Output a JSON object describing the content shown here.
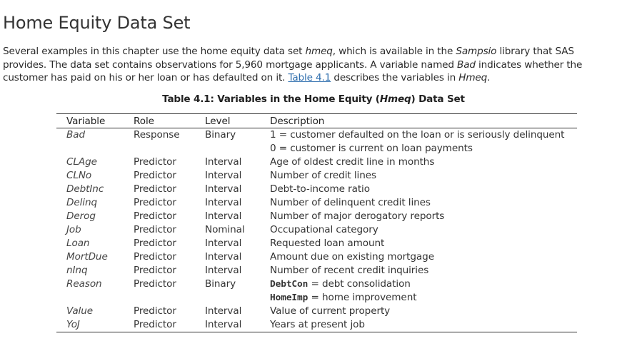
{
  "title": "Home Equity Data Set",
  "paragraph": {
    "t1": "Several examples in this chapter use the home equity data set ",
    "hmeq1": "hmeq",
    "t2": ", which is available in the ",
    "sampsio": "Sampsio",
    "t3": " library that SAS provides. The data set contains observations for 5,960 mortgage applicants. A variable named ",
    "bad": "Bad",
    "t4": " indicates whether the customer has paid on his or her loan or has defaulted on it. ",
    "link": "Table 4.1",
    "t5": " describes the variables in ",
    "hmeq2": "Hmeq",
    "t6": "."
  },
  "caption": {
    "prefix": "Table 4.1: Variables in the Home Equity (",
    "italic": "Hmeq",
    "suffix": ") Data Set"
  },
  "table": {
    "headers": [
      "Variable",
      "Role",
      "Level",
      "Description"
    ],
    "rows": [
      {
        "variable": "Bad",
        "role": "Response",
        "level": "Binary",
        "description": "1 = customer defaulted on the loan or is seriously delinquent"
      },
      {
        "variable": "",
        "role": "",
        "level": "",
        "description": "0 = customer is current on loan payments"
      },
      {
        "variable": "CLAge",
        "role": "Predictor",
        "level": "Interval",
        "description": "Age of oldest credit line in months"
      },
      {
        "variable": "CLNo",
        "role": "Predictor",
        "level": "Interval",
        "description": "Number of credit lines"
      },
      {
        "variable": "DebtInc",
        "role": "Predictor",
        "level": "Interval",
        "description": "Debt-to-income ratio"
      },
      {
        "variable": "Delinq",
        "role": "Predictor",
        "level": "Interval",
        "description": "Number of delinquent credit lines"
      },
      {
        "variable": "Derog",
        "role": "Predictor",
        "level": "Interval",
        "description": "Number of major derogatory reports"
      },
      {
        "variable": "Job",
        "role": "Predictor",
        "level": "Nominal",
        "description": "Occupational category"
      },
      {
        "variable": "Loan",
        "role": "Predictor",
        "level": "Interval",
        "description": "Requested loan amount"
      },
      {
        "variable": "MortDue",
        "role": "Predictor",
        "level": "Interval",
        "description": "Amount due on existing mortgage"
      },
      {
        "variable": "nInq",
        "role": "Predictor",
        "level": "Interval",
        "description": "Number of recent credit inquiries"
      },
      {
        "variable": "Reason",
        "role": "Predictor",
        "level": "Binary",
        "code": "DebtCon",
        "description": " = debt consolidation"
      },
      {
        "variable": "",
        "role": "",
        "level": "",
        "code": "HomeImp",
        "description": " = home improvement"
      },
      {
        "variable": "Value",
        "role": "Predictor",
        "level": "Interval",
        "description": "Value of current property"
      },
      {
        "variable": "YoJ",
        "role": "Predictor",
        "level": "Interval",
        "description": "Years at present job"
      }
    ]
  }
}
